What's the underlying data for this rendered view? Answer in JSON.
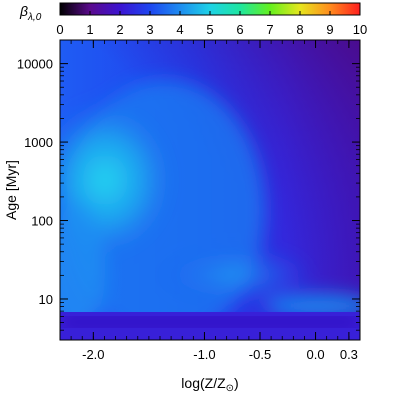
{
  "chart_data": {
    "type": "heatmap",
    "colorbar": {
      "label": "β",
      "label_subscript": "λ,0",
      "range": [
        0,
        10
      ],
      "ticks": [
        0,
        1,
        2,
        3,
        4,
        5,
        6,
        7,
        8,
        9,
        10
      ],
      "tick_labels": [
        "0",
        "1",
        "2",
        "3",
        "4",
        "5",
        "6",
        "7",
        "8",
        "9",
        "10"
      ],
      "placement": "top"
    },
    "x_axis": {
      "label": "log(Z/Z",
      "label_symbol": "⊙",
      "label_suffix": ")",
      "range": [
        -2.3,
        0.4
      ],
      "ticks": [
        -2.0,
        -1.0,
        -0.5,
        0.0,
        0.3
      ],
      "tick_labels": [
        "-2.0",
        "-1.0",
        "-0.5",
        "0.0",
        "0.3"
      ],
      "scale": "linear"
    },
    "y_axis": {
      "label": "Age [Myr]",
      "range": [
        3,
        20000
      ],
      "ticks": [
        10,
        100,
        1000,
        10000
      ],
      "tick_labels": [
        "10",
        "100",
        "1000",
        "10000"
      ],
      "scale": "log"
    },
    "grid": false,
    "colors": {
      "background": "#ffffff",
      "colormap": [
        "#000000",
        "#5a0a8c",
        "#3c14d2",
        "#1e46f0",
        "#1e8cf0",
        "#1ed2e6",
        "#1ee6a0",
        "#64f01e",
        "#e6e61e",
        "#ff8c1e",
        "#ff1e1e"
      ]
    }
  }
}
